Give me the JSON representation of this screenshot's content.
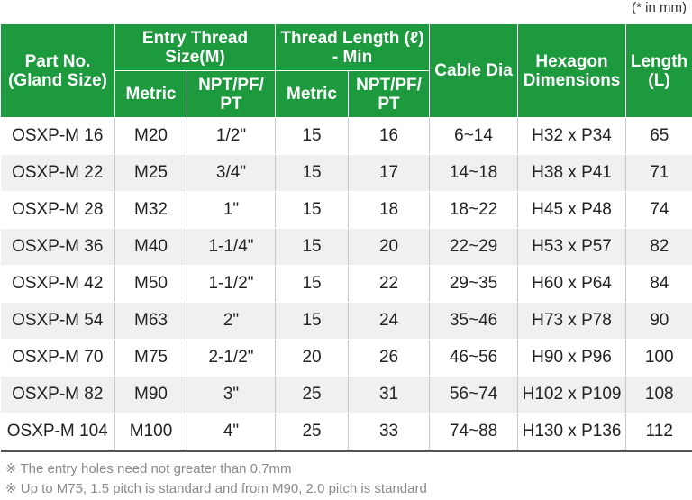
{
  "unit_note": "(* in mm)",
  "headers": {
    "part_no": "Part No. (Gland Size)",
    "entry_thread": "Entry Thread Size(M)",
    "thread_length": "Thread Length (ℓ) - Min",
    "cable_dia": "Cable Dia",
    "hexagon": "Hexagon Dimensions",
    "length": "Length (L)",
    "metric": "Metric",
    "npt": "NPT/PF/ PT"
  },
  "rows": [
    {
      "part": "OSXP-M 16",
      "metric": "M20",
      "npt": "1/2\"",
      "tl_metric": "15",
      "tl_npt": "16",
      "cable": "6~14",
      "hex": "H32 x P34",
      "length": "65"
    },
    {
      "part": "OSXP-M 22",
      "metric": "M25",
      "npt": "3/4\"",
      "tl_metric": "15",
      "tl_npt": "17",
      "cable": "14~18",
      "hex": "H38 x P41",
      "length": "71"
    },
    {
      "part": "OSXP-M 28",
      "metric": "M32",
      "npt": "1\"",
      "tl_metric": "15",
      "tl_npt": "18",
      "cable": "18~22",
      "hex": "H45 x P48",
      "length": "74"
    },
    {
      "part": "OSXP-M 36",
      "metric": "M40",
      "npt": "1-1/4\"",
      "tl_metric": "15",
      "tl_npt": "20",
      "cable": "22~29",
      "hex": "H53 x P57",
      "length": "82"
    },
    {
      "part": "OSXP-M 42",
      "metric": "M50",
      "npt": "1-1/2\"",
      "tl_metric": "15",
      "tl_npt": "22",
      "cable": "29~35",
      "hex": "H60 x P64",
      "length": "84"
    },
    {
      "part": "OSXP-M 54",
      "metric": "M63",
      "npt": "2\"",
      "tl_metric": "15",
      "tl_npt": "24",
      "cable": "35~46",
      "hex": "H73 x P78",
      "length": "90"
    },
    {
      "part": "OSXP-M 70",
      "metric": "M75",
      "npt": "2-1/2\"",
      "tl_metric": "20",
      "tl_npt": "26",
      "cable": "46~56",
      "hex": "H90 x P96",
      "length": "100"
    },
    {
      "part": "OSXP-M 82",
      "metric": "M90",
      "npt": "3\"",
      "tl_metric": "25",
      "tl_npt": "31",
      "cable": "56~74",
      "hex": "H102 x P109",
      "length": "108"
    },
    {
      "part": "OSXP-M 104",
      "metric": "M100",
      "npt": "4\"",
      "tl_metric": "25",
      "tl_npt": "33",
      "cable": "74~88",
      "hex": "H130 x P136",
      "length": "112"
    }
  ],
  "notes": [
    "※ The entry holes need not greater than 0.7mm",
    "※ Up to M75, 1.5 pitch is standard and from M90, 2.0 pitch is standard"
  ],
  "colors": {
    "header_bg": "#1d9a3e",
    "header_text": "#ffffff",
    "alt_row_bg": "#f0f0f0",
    "note_text": "#8a8a8a"
  }
}
